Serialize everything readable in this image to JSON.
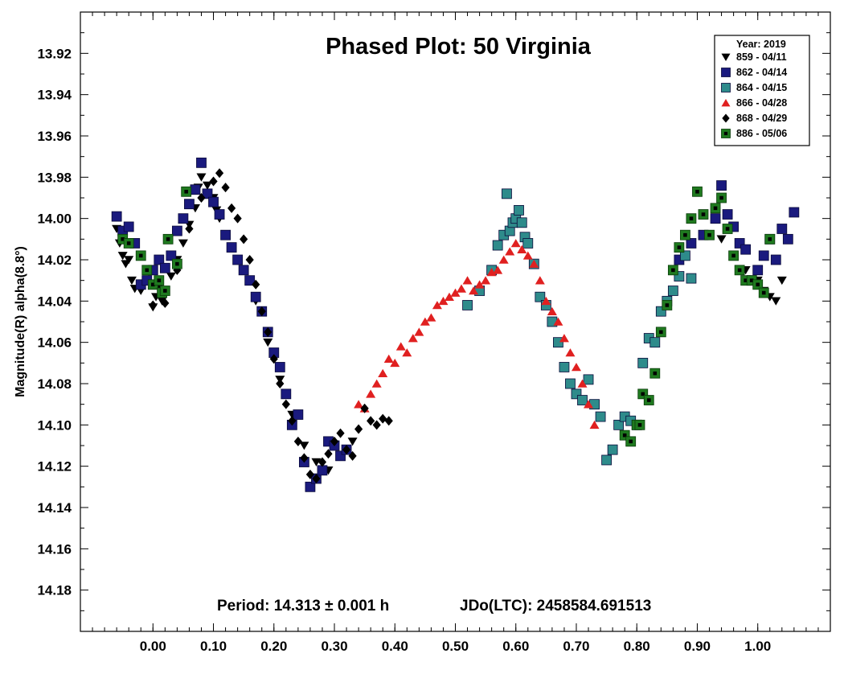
{
  "chart_data": {
    "type": "scatter",
    "title": "Phased Plot: 50 Virginia",
    "xlabel": "",
    "ylabel": "Magnitude(R) alpha(8.8°)",
    "xlim": [
      -0.12,
      1.12
    ],
    "ylim": [
      13.9,
      14.2
    ],
    "y_inverted": true,
    "grid": false,
    "x_ticks": [
      "0.00",
      "0.10",
      "0.20",
      "0.30",
      "0.40",
      "0.50",
      "0.60",
      "0.70",
      "0.80",
      "0.90",
      "1.00"
    ],
    "y_ticks": [
      "13.92",
      "13.94",
      "13.96",
      "13.98",
      "14.00",
      "14.02",
      "14.04",
      "14.06",
      "14.08",
      "14.10",
      "14.12",
      "14.14",
      "14.16",
      "14.18"
    ],
    "annotations": {
      "period": "Period: 14.313 ± 0.001 h",
      "epoch": "JDo(LTC): 2458584.691513"
    },
    "legend": {
      "title": "Year: 2019",
      "position": "top-right"
    },
    "series": [
      {
        "name": "859 - 04/11",
        "marker": "triangle-down",
        "color": "#000000",
        "x": [
          -0.06,
          -0.055,
          -0.05,
          -0.045,
          -0.04,
          -0.035,
          -0.03,
          -0.02,
          -0.01,
          0.0,
          0.005,
          0.01,
          0.015,
          0.02,
          0.03,
          0.04,
          0.05,
          0.06,
          0.07,
          0.075,
          0.08,
          0.09,
          0.1,
          0.105,
          0.11,
          0.12,
          0.13,
          0.15,
          0.17,
          0.19,
          0.21,
          0.23,
          0.25,
          0.27,
          0.29,
          0.31,
          0.33,
          0.94,
          0.96,
          0.98,
          1.0,
          1.01,
          1.02,
          1.03,
          1.04,
          1.05
        ],
        "y": [
          14.005,
          14.012,
          14.018,
          14.022,
          14.02,
          14.03,
          14.034,
          14.035,
          14.03,
          14.043,
          14.038,
          14.033,
          14.04,
          14.035,
          14.028,
          14.02,
          14.012,
          14.003,
          13.995,
          13.985,
          13.98,
          13.984,
          13.99,
          13.996,
          14.0,
          14.008,
          14.014,
          14.025,
          14.04,
          14.06,
          14.078,
          14.095,
          14.11,
          14.118,
          14.122,
          14.115,
          14.108,
          14.01,
          14.018,
          14.025,
          14.03,
          14.035,
          14.038,
          14.04,
          14.03,
          14.01
        ]
      },
      {
        "name": "862 - 04/14",
        "marker": "square",
        "color": "#1a1a7e",
        "x": [
          -0.06,
          -0.05,
          -0.04,
          -0.03,
          -0.02,
          -0.01,
          0.0,
          0.01,
          0.02,
          0.03,
          0.04,
          0.05,
          0.06,
          0.07,
          0.08,
          0.09,
          0.1,
          0.11,
          0.12,
          0.13,
          0.14,
          0.15,
          0.16,
          0.17,
          0.18,
          0.19,
          0.2,
          0.21,
          0.22,
          0.23,
          0.24,
          0.25,
          0.26,
          0.27,
          0.28,
          0.29,
          0.3,
          0.31,
          0.32,
          0.87,
          0.89,
          0.91,
          0.93,
          0.94,
          0.95,
          0.96,
          0.97,
          0.98,
          0.99,
          1.0,
          1.01,
          1.02,
          1.03,
          1.04,
          1.05,
          1.06
        ],
        "y": [
          13.999,
          14.006,
          14.004,
          14.012,
          14.032,
          14.03,
          14.025,
          14.02,
          14.024,
          14.018,
          14.006,
          14.0,
          13.993,
          13.986,
          13.973,
          13.988,
          13.992,
          13.998,
          14.008,
          14.014,
          14.02,
          14.025,
          14.03,
          14.038,
          14.045,
          14.055,
          14.065,
          14.072,
          14.085,
          14.1,
          14.095,
          14.118,
          14.13,
          14.126,
          14.122,
          14.108,
          14.11,
          14.115,
          14.112,
          14.02,
          14.012,
          14.008,
          14.0,
          13.984,
          13.998,
          14.004,
          14.012,
          14.015,
          14.03,
          14.025,
          14.018,
          14.01,
          14.02,
          14.005,
          14.01,
          13.997
        ]
      },
      {
        "name": "864 - 04/15",
        "marker": "square",
        "color": "#2e8b8b",
        "x": [
          0.52,
          0.54,
          0.56,
          0.57,
          0.58,
          0.585,
          0.59,
          0.595,
          0.6,
          0.605,
          0.61,
          0.615,
          0.62,
          0.63,
          0.64,
          0.65,
          0.66,
          0.67,
          0.68,
          0.69,
          0.7,
          0.71,
          0.72,
          0.73,
          0.74,
          0.75,
          0.76,
          0.77,
          0.78,
          0.79,
          0.8,
          0.81,
          0.82,
          0.83,
          0.84,
          0.85,
          0.86,
          0.87,
          0.88,
          0.89
        ],
        "y": [
          14.042,
          14.035,
          14.025,
          14.013,
          14.008,
          13.988,
          14.006,
          14.002,
          14.0,
          13.996,
          14.002,
          14.009,
          14.012,
          14.022,
          14.038,
          14.042,
          14.05,
          14.06,
          14.072,
          14.08,
          14.085,
          14.088,
          14.078,
          14.09,
          14.096,
          14.117,
          14.112,
          14.1,
          14.096,
          14.098,
          14.1,
          14.07,
          14.058,
          14.06,
          14.045,
          14.04,
          14.035,
          14.028,
          14.018,
          14.029
        ]
      },
      {
        "name": "866 - 04/28",
        "marker": "triangle-up",
        "color": "#e02020",
        "x": [
          0.34,
          0.35,
          0.36,
          0.37,
          0.38,
          0.39,
          0.4,
          0.41,
          0.42,
          0.43,
          0.44,
          0.45,
          0.46,
          0.47,
          0.48,
          0.49,
          0.5,
          0.51,
          0.52,
          0.53,
          0.54,
          0.55,
          0.56,
          0.57,
          0.58,
          0.59,
          0.6,
          0.61,
          0.62,
          0.63,
          0.64,
          0.65,
          0.66,
          0.67,
          0.68,
          0.69,
          0.7,
          0.71,
          0.72,
          0.73
        ],
        "y": [
          14.09,
          14.092,
          14.085,
          14.08,
          14.075,
          14.068,
          14.07,
          14.062,
          14.065,
          14.058,
          14.055,
          14.05,
          14.048,
          14.042,
          14.04,
          14.038,
          14.036,
          14.034,
          14.03,
          14.035,
          14.032,
          14.03,
          14.026,
          14.025,
          14.02,
          14.016,
          14.012,
          14.015,
          14.018,
          14.022,
          14.03,
          14.04,
          14.045,
          14.05,
          14.058,
          14.065,
          14.072,
          14.08,
          14.09,
          14.1
        ]
      },
      {
        "name": "868 - 04/29",
        "marker": "diamond",
        "color": "#000000",
        "x": [
          0.0,
          0.02,
          0.04,
          0.06,
          0.08,
          0.1,
          0.11,
          0.12,
          0.13,
          0.14,
          0.15,
          0.16,
          0.17,
          0.18,
          0.19,
          0.2,
          0.21,
          0.22,
          0.23,
          0.24,
          0.25,
          0.26,
          0.27,
          0.28,
          0.29,
          0.3,
          0.31,
          0.32,
          0.33,
          0.34,
          0.35,
          0.36,
          0.37,
          0.38,
          0.39
        ],
        "y": [
          14.042,
          14.041,
          14.025,
          14.005,
          13.99,
          13.982,
          13.978,
          13.985,
          13.995,
          14.0,
          14.01,
          14.02,
          14.032,
          14.045,
          14.055,
          14.068,
          14.08,
          14.09,
          14.098,
          14.108,
          14.116,
          14.124,
          14.126,
          14.118,
          14.114,
          14.108,
          14.104,
          14.112,
          14.115,
          14.102,
          14.092,
          14.098,
          14.1,
          14.097,
          14.098
        ]
      },
      {
        "name": "886 - 05/06",
        "marker": "square-dot",
        "color": "#1f7a1f",
        "x": [
          -0.05,
          -0.04,
          -0.02,
          -0.01,
          0.0,
          0.01,
          0.015,
          0.02,
          0.025,
          0.04,
          0.055,
          0.78,
          0.79,
          0.8,
          0.805,
          0.81,
          0.82,
          0.83,
          0.84,
          0.85,
          0.86,
          0.87,
          0.88,
          0.89,
          0.9,
          0.91,
          0.92,
          0.93,
          0.94,
          0.95,
          0.96,
          0.97,
          0.98,
          0.99,
          1.0,
          1.01,
          1.02
        ],
        "y": [
          14.01,
          14.012,
          14.018,
          14.025,
          14.032,
          14.03,
          14.036,
          14.035,
          14.01,
          14.022,
          13.987,
          14.105,
          14.108,
          14.1,
          14.1,
          14.085,
          14.088,
          14.075,
          14.055,
          14.042,
          14.025,
          14.014,
          14.008,
          14.0,
          13.987,
          13.998,
          14.008,
          13.995,
          13.99,
          14.005,
          14.018,
          14.025,
          14.03,
          14.03,
          14.032,
          14.036,
          14.01
        ]
      }
    ]
  }
}
